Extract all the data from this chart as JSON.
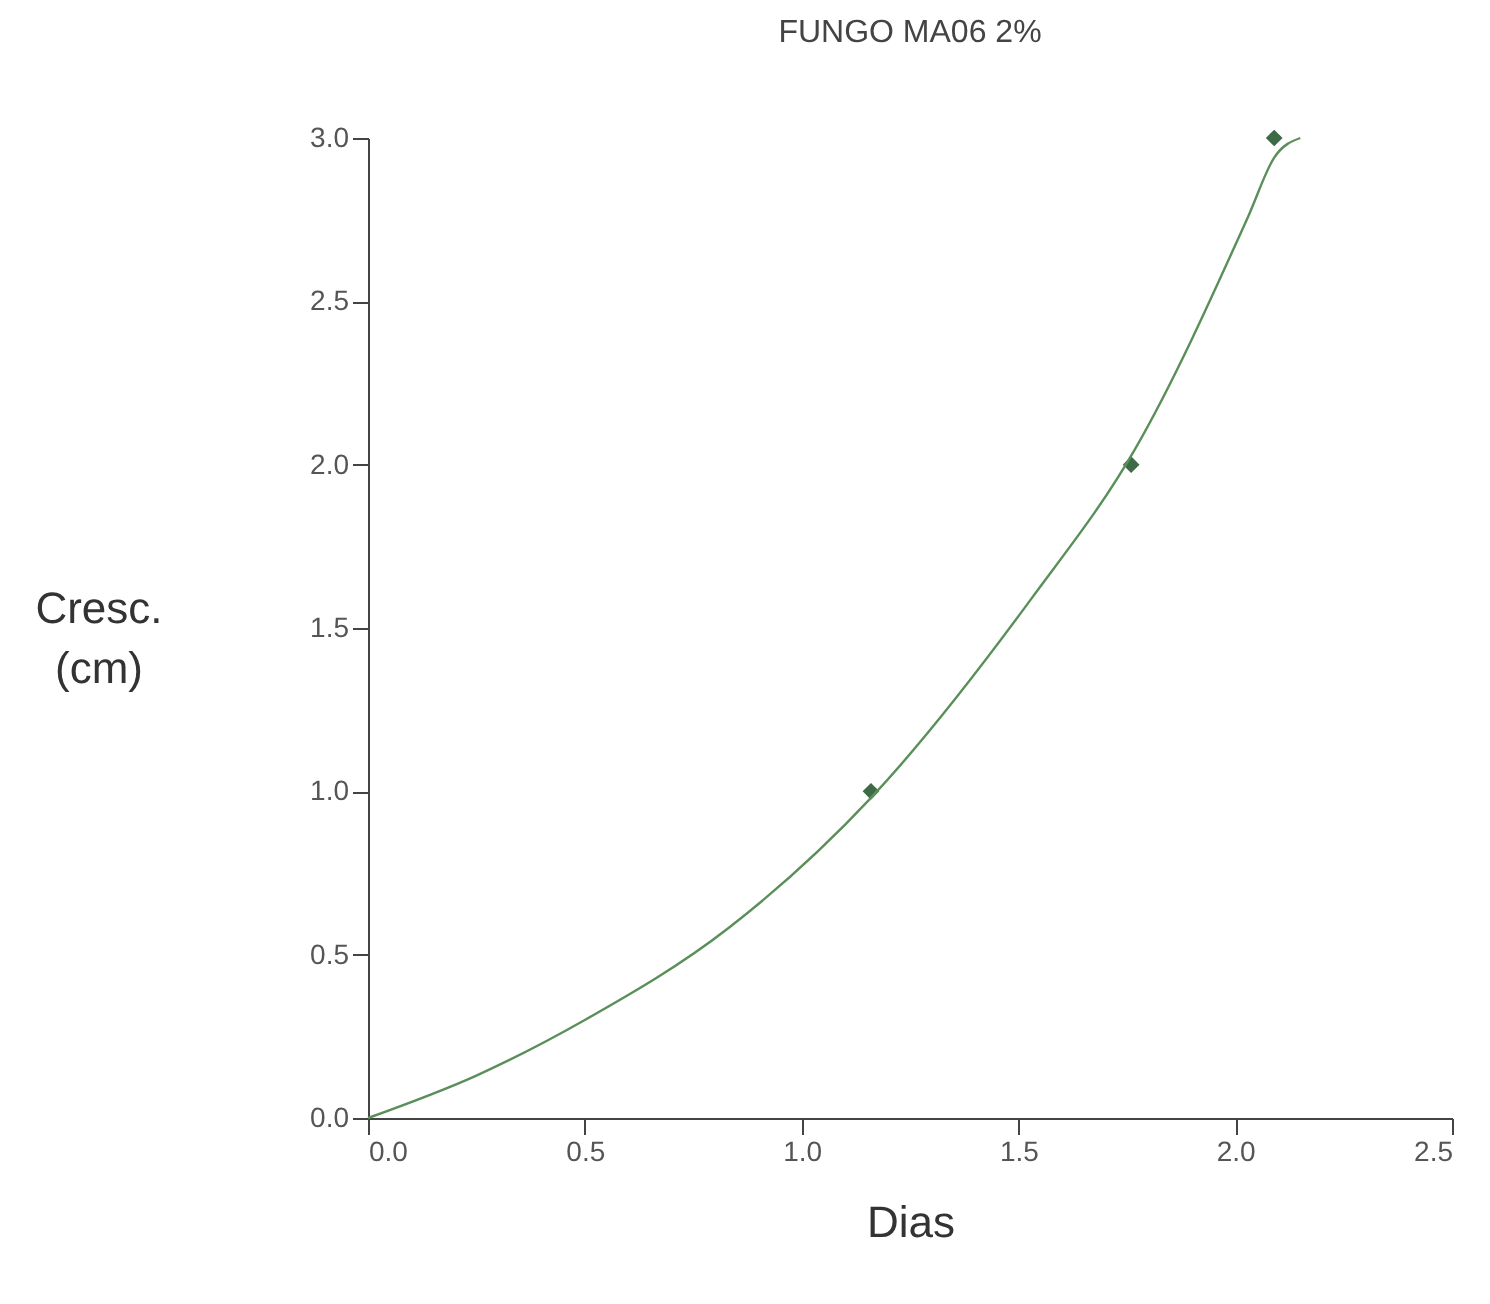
{
  "chart_data": {
    "type": "scatter",
    "title": "FUNGO MA06 2%",
    "xlabel": "Dias",
    "ylabel": "Cresc.\n(cm)",
    "xlim": [
      0,
      2.5
    ],
    "xticks": [
      {
        "value": 0,
        "label": "0.0"
      },
      0.5,
      {
        "value": 1,
        "label": "1.0"
      },
      1.5,
      {
        "value": 2,
        "label": "2.0"
      },
      2.5
    ],
    "ylim": [
      0,
      3
    ],
    "yticks": [
      {
        "value": 0,
        "label": "0.0"
      },
      0.5,
      {
        "value": 1,
        "label": "1.0"
      },
      1.5,
      {
        "value": 2,
        "label": "2.0"
      },
      2.5,
      {
        "value": 3,
        "label": "3.0"
      }
    ],
    "grid": false,
    "series": [
      {
        "color": "#3d6b45",
        "marker": "diamond",
        "x": [
          1.16,
          1.76,
          2.09
        ],
        "values": [
          1.0,
          2.0,
          3.0
        ]
      },
      {
        "type": "line",
        "color": "#5a8f5a",
        "marker": "none",
        "x": [
          0,
          0.25,
          0.5,
          0.83,
          1.16,
          1.53,
          1.77,
          2.03,
          2.09,
          2.15
        ],
        "values": [
          0,
          0.13,
          0.3,
          0.58,
          0.98,
          1.59,
          2.05,
          2.76,
          2.94,
          3.0
        ]
      }
    ]
  }
}
